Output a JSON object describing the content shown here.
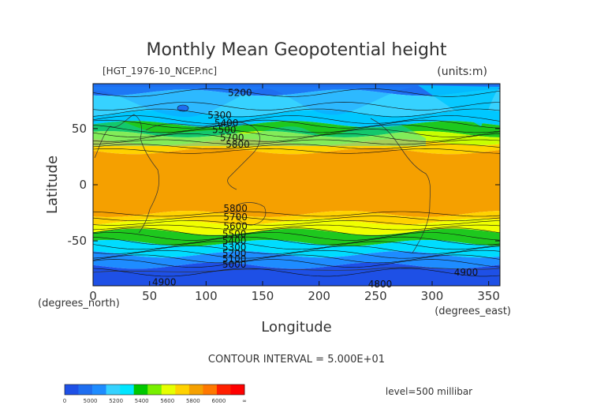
{
  "chart_data": {
    "type": "heatmap",
    "title": "Monthly Mean Geopotential height",
    "file_label": "[HGT_1976-10_NCEP.nc]",
    "units_label": "(units:m)",
    "xlabel": "Longitude",
    "ylabel": "Latitude",
    "x_unit_label": "(degrees_east)",
    "y_unit_label": "(degrees_north)",
    "xlim": [
      0,
      360
    ],
    "ylim": [
      -90,
      90
    ],
    "xticks": [
      0,
      50,
      100,
      150,
      200,
      250,
      300,
      350
    ],
    "yticks": [
      -50,
      0,
      50
    ],
    "contour_interval_label": "CONTOUR INTERVAL = 5.000E+01",
    "level_label": "level=500 millibar",
    "contour_labels": [
      {
        "text": "5200",
        "lon": 130,
        "lat": 82
      },
      {
        "text": "5300",
        "lon": 112,
        "lat": 62
      },
      {
        "text": "5400",
        "lon": 118,
        "lat": 55
      },
      {
        "text": "5500",
        "lon": 116,
        "lat": 49
      },
      {
        "text": "5700",
        "lon": 123,
        "lat": 42
      },
      {
        "text": "5800",
        "lon": 128,
        "lat": 36
      },
      {
        "text": "5800",
        "lon": 126,
        "lat": -21
      },
      {
        "text": "5700",
        "lon": 126,
        "lat": -29
      },
      {
        "text": "5600",
        "lon": 126,
        "lat": -37
      },
      {
        "text": "5500",
        "lon": 125,
        "lat": -44
      },
      {
        "text": "5400",
        "lon": 125,
        "lat": -50
      },
      {
        "text": "5300",
        "lon": 125,
        "lat": -56
      },
      {
        "text": "5200",
        "lon": 125,
        "lat": -61
      },
      {
        "text": "5100",
        "lon": 125,
        "lat": -66
      },
      {
        "text": "5000",
        "lon": 125,
        "lat": -71
      },
      {
        "text": "4900",
        "lon": 63,
        "lat": -87
      },
      {
        "text": "4900",
        "lon": 330,
        "lat": -78
      },
      {
        "text": "4800",
        "lon": 254,
        "lat": -90
      }
    ],
    "bands": [
      {
        "top_lat": 90,
        "bottom_lat": 82,
        "color": "#1e6ef0"
      },
      {
        "top_lat": 82,
        "bottom_lat": 64,
        "color": "#36d2ff"
      },
      {
        "top_lat": 64,
        "bottom_lat": 54,
        "color": "#00c8ff"
      },
      {
        "top_lat": 54,
        "bottom_lat": 45,
        "color": "#1ec81e"
      },
      {
        "top_lat": 45,
        "bottom_lat": 38,
        "color": "#c8ff00"
      },
      {
        "top_lat": 38,
        "bottom_lat": 30,
        "color": "#ffd200"
      },
      {
        "top_lat": 30,
        "bottom_lat": -26,
        "color": "#f5a000"
      },
      {
        "top_lat": -26,
        "bottom_lat": -33,
        "color": "#ffd200"
      },
      {
        "top_lat": -33,
        "bottom_lat": -42,
        "color": "#f0ff00"
      },
      {
        "top_lat": -42,
        "bottom_lat": -52,
        "color": "#1ec81e"
      },
      {
        "top_lat": -52,
        "bottom_lat": -62,
        "color": "#00dcff"
      },
      {
        "top_lat": -62,
        "bottom_lat": -72,
        "color": "#1e8cff"
      },
      {
        "top_lat": -72,
        "bottom_lat": -90,
        "color": "#1e50e6"
      }
    ],
    "contour_lats": [
      82,
      70,
      64,
      58,
      54,
      50,
      46,
      42,
      38,
      34,
      30,
      -26,
      -30,
      -34,
      -38,
      -42,
      -46,
      -50,
      -54,
      -58,
      -62,
      -66,
      -70,
      -78
    ],
    "colorbar": {
      "colors": [
        "#1e50e6",
        "#1e6ef0",
        "#1e8cff",
        "#36d2ff",
        "#00e6ff",
        "#00c800",
        "#78f000",
        "#e6ff00",
        "#ffd200",
        "#f5a000",
        "#ff7800",
        "#ff2000",
        "#ff0000"
      ],
      "tick_labels": [
        "0",
        "5000",
        "5200",
        "5400",
        "5600",
        "5800",
        "6000",
        "∞"
      ]
    }
  }
}
